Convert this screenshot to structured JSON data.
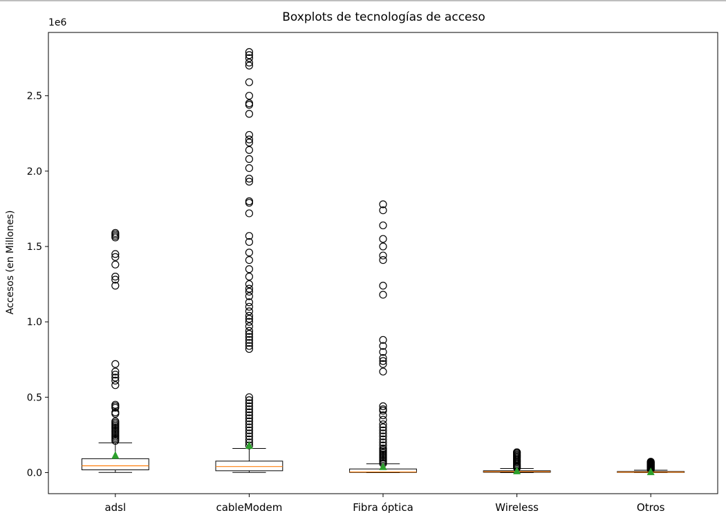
{
  "chart_data": {
    "type": "boxplot",
    "title": "Boxplots de tecnologías de acceso",
    "xlabel": "",
    "ylabel": "Accesos (en Millones)",
    "y_offset_text": "1e6",
    "ylim": [
      -140000,
      2920000
    ],
    "ytick_values": [
      0,
      500000,
      1000000,
      1500000,
      2000000,
      2500000
    ],
    "ytick_labels": [
      "0.0",
      "0.5",
      "1.0",
      "1.5",
      "2.0",
      "2.5"
    ],
    "grid": false,
    "show_means": true,
    "colors": {
      "median": "#ff7f0e",
      "mean": "#2ca02c",
      "box": "#000000",
      "flier": "#000000"
    },
    "categories": [
      "adsl",
      "cableModem",
      "Fibra óptica",
      "Wireless",
      "Otros"
    ],
    "boxes": [
      {
        "whisker_low": 1000,
        "q1": 18000,
        "median": 45000,
        "q3": 92000,
        "whisker_high": 197000,
        "mean": 115000,
        "outliers": [
          1590000,
          1580000,
          1570000,
          1560000,
          1450000,
          1430000,
          1380000,
          1300000,
          1280000,
          1240000,
          720000,
          670000,
          650000,
          630000,
          610000,
          580000,
          450000,
          440000,
          430000,
          400000,
          390000,
          340000,
          330000,
          320000,
          310000,
          300000,
          290000,
          280000,
          270000,
          260000,
          250000,
          240000,
          230000,
          220000,
          210000
        ]
      },
      {
        "whisker_low": 1000,
        "q1": 12000,
        "median": 40000,
        "q3": 76000,
        "whisker_high": 160000,
        "mean": 180000,
        "outliers": [
          2790000,
          2770000,
          2750000,
          2720000,
          2700000,
          2590000,
          2500000,
          2450000,
          2440000,
          2380000,
          2240000,
          2210000,
          2190000,
          2140000,
          2080000,
          2020000,
          1950000,
          1930000,
          1800000,
          1790000,
          1720000,
          1570000,
          1530000,
          1460000,
          1410000,
          1350000,
          1300000,
          1250000,
          1220000,
          1200000,
          1170000,
          1130000,
          1100000,
          1070000,
          1040000,
          1020000,
          1000000,
          970000,
          940000,
          920000,
          900000,
          880000,
          860000,
          840000,
          820000,
          500000,
          480000,
          460000,
          440000,
          420000,
          400000,
          380000,
          360000,
          340000,
          320000,
          300000,
          280000,
          260000,
          240000,
          220000,
          200000,
          180000
        ]
      },
      {
        "whisker_low": 0,
        "q1": 1000,
        "median": 4000,
        "q3": 24000,
        "whisker_high": 58000,
        "mean": 40000,
        "outliers": [
          1780000,
          1740000,
          1640000,
          1550000,
          1500000,
          1440000,
          1410000,
          1240000,
          1180000,
          880000,
          840000,
          800000,
          760000,
          740000,
          720000,
          670000,
          440000,
          420000,
          410000,
          380000,
          350000,
          320000,
          300000,
          280000,
          260000,
          240000,
          220000,
          200000,
          180000,
          160000,
          150000,
          140000,
          130000,
          120000,
          110000,
          100000,
          90000,
          80000,
          70000,
          60000
        ]
      },
      {
        "whisker_low": 0,
        "q1": 2000,
        "median": 6000,
        "q3": 12000,
        "whisker_high": 27000,
        "mean": 12000,
        "outliers": [
          135000,
          128000,
          120000,
          112000,
          105000,
          98000,
          90000,
          82000,
          75000,
          68000,
          60000,
          52000,
          45000,
          38000,
          32000
        ]
      },
      {
        "whisker_low": 0,
        "q1": 1000,
        "median": 3000,
        "q3": 7000,
        "whisker_high": 16000,
        "mean": 6000,
        "outliers": [
          72000,
          68000,
          64000,
          60000,
          56000,
          52000,
          48000,
          44000,
          40000,
          36000,
          32000,
          28000,
          24000,
          20000
        ]
      }
    ]
  }
}
